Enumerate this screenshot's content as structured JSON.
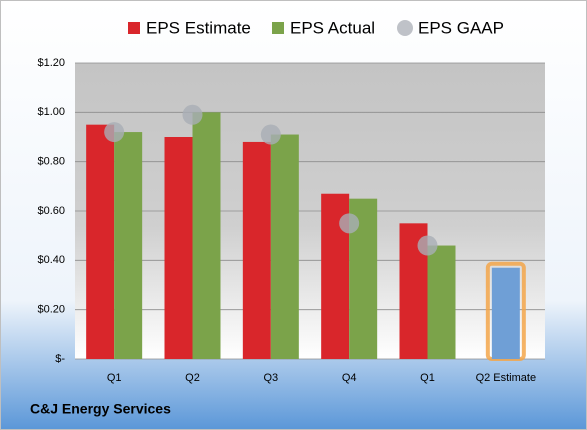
{
  "chart_data": {
    "type": "bar",
    "footer": "C&J Energy Services",
    "categories": [
      "Q1",
      "Q2",
      "Q3",
      "Q4",
      "Q1",
      "Q2 Estimate"
    ],
    "series": [
      {
        "name": "EPS Estimate",
        "color": "#d9262b",
        "values": [
          0.95,
          0.9,
          0.88,
          0.67,
          0.55,
          0.37
        ]
      },
      {
        "name": "EPS Actual",
        "color": "#7ba34a",
        "values": [
          0.92,
          1.0,
          0.91,
          0.65,
          0.46,
          null
        ]
      },
      {
        "name": "EPS GAAP",
        "color": "#a9aeb5",
        "marker": "circle",
        "values": [
          0.92,
          0.99,
          0.91,
          0.55,
          0.46,
          null
        ]
      }
    ],
    "highlight": {
      "index": 5,
      "color": "#6f9fd6",
      "outline": "#f3a64a"
    },
    "ylim": [
      0,
      1.2
    ],
    "yticks": [
      {
        "value": 0,
        "label": "$-"
      },
      {
        "value": 0.2,
        "label": "$0.20"
      },
      {
        "value": 0.4,
        "label": "$0.40"
      },
      {
        "value": 0.6,
        "label": "$0.60"
      },
      {
        "value": 0.8,
        "label": "$0.80"
      },
      {
        "value": 1.0,
        "label": "$1.00"
      },
      {
        "value": 1.2,
        "label": "$1.20"
      }
    ],
    "grid": true,
    "legend": "top"
  }
}
